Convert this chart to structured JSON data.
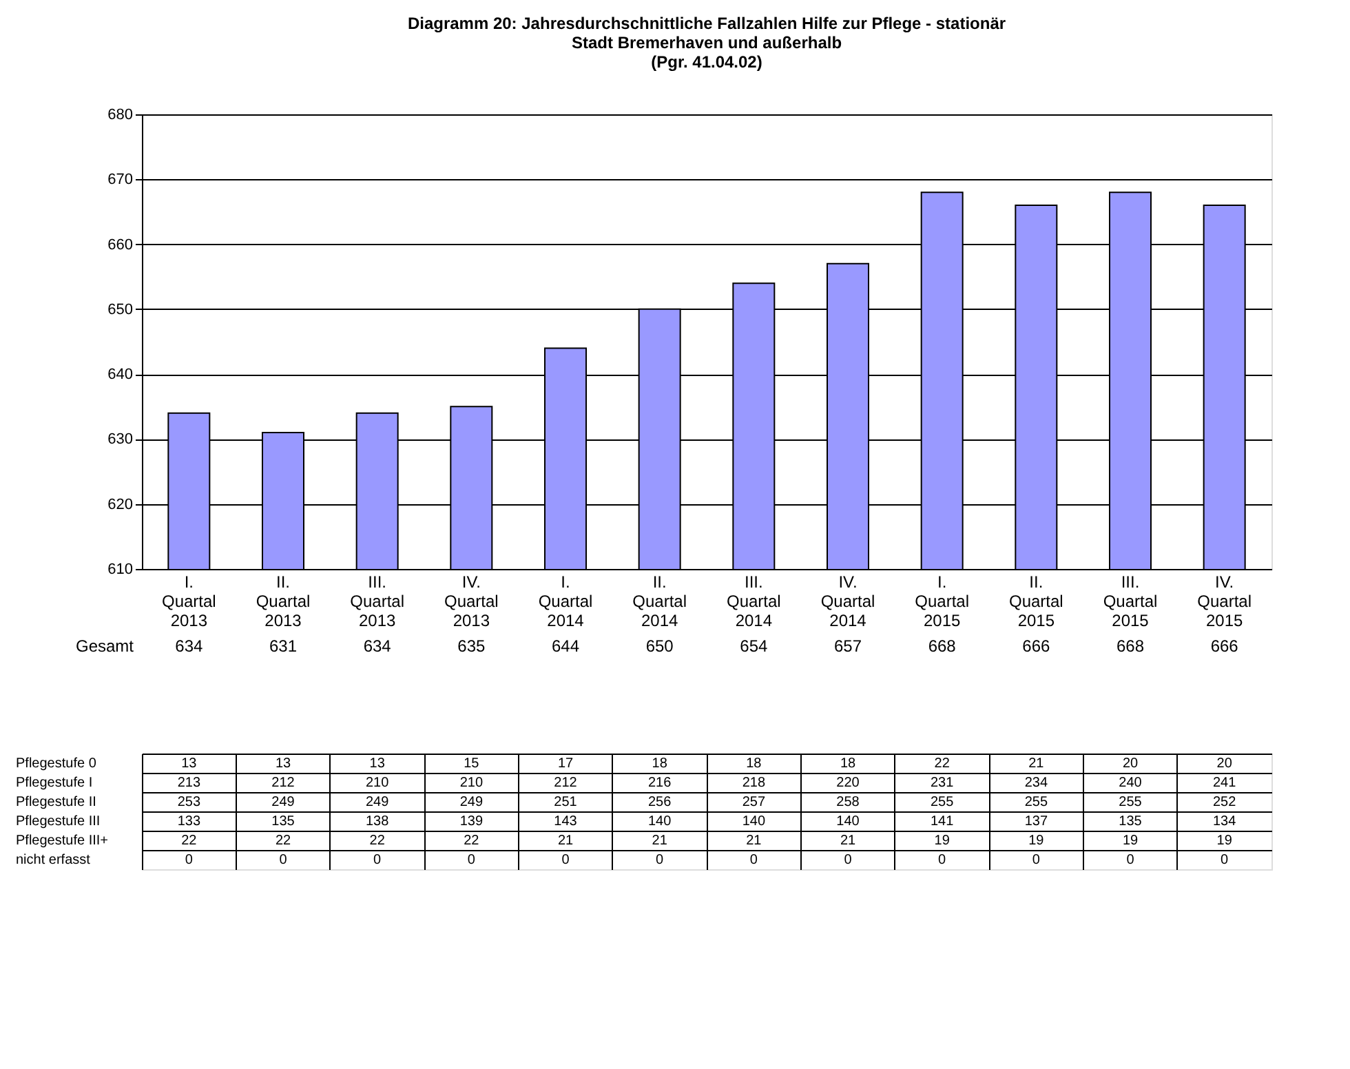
{
  "chart_data": [
    {
      "type": "bar",
      "title": "Diagramm 20: Jahresdurchschnittliche Fallzahlen Hilfe zur Pflege - stationär\nStadt Bremerhaven und außerhalb\n(Pgr. 41.04.02)",
      "categories": [
        "I. Quartal 2013",
        "II. Quartal 2013",
        "III. Quartal 2013",
        "IV. Quartal 2013",
        "I. Quartal 2014",
        "II. Quartal 2014",
        "III. Quartal 2014",
        "IV. Quartal 2014",
        "I. Quartal 2015",
        "II. Quartal 2015",
        "III. Quartal 2015",
        "IV. Quartal 2015"
      ],
      "series": [
        {
          "name": "Gesamt",
          "color": "#9999ff",
          "values": [
            634,
            631,
            634,
            635,
            644,
            650,
            654,
            657,
            668,
            666,
            668,
            666
          ]
        }
      ],
      "ylim": [
        610,
        680
      ],
      "yticks": [
        610,
        620,
        630,
        640,
        650,
        660,
        670,
        680
      ],
      "grid": "y",
      "data_labels": true
    },
    {
      "type": "heatmap",
      "data_labels": true,
      "grid": true,
      "categories": [
        null,
        null,
        null,
        null,
        null,
        null,
        null,
        null,
        null,
        null,
        null,
        null
      ],
      "y_categories": [
        "Pflegestufe 0",
        "Pflegestufe I",
        "Pflegestufe II",
        "Pflegestufe III",
        "Pflegestufe III+",
        "nicht erfasst"
      ],
      "cells": [
        [
          13,
          13,
          13,
          15,
          17,
          18,
          18,
          18,
          22,
          21,
          20,
          20
        ],
        [
          213,
          212,
          210,
          210,
          212,
          216,
          218,
          220,
          231,
          234,
          240,
          241
        ],
        [
          253,
          249,
          249,
          249,
          251,
          256,
          257,
          258,
          255,
          255,
          255,
          252
        ],
        [
          133,
          135,
          138,
          139,
          143,
          140,
          140,
          140,
          141,
          137,
          135,
          134
        ],
        [
          22,
          22,
          22,
          22,
          21,
          21,
          21,
          21,
          19,
          19,
          19,
          19
        ],
        [
          0,
          0,
          0,
          0,
          0,
          0,
          0,
          0,
          0,
          0,
          0,
          0
        ]
      ]
    }
  ]
}
